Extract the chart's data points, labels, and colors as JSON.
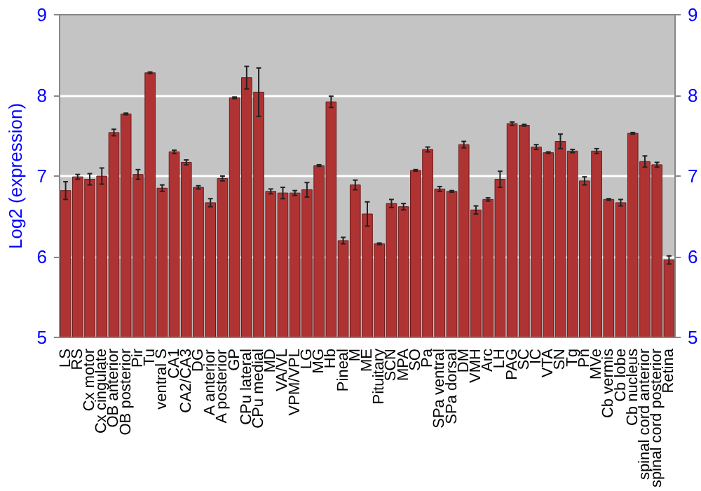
{
  "chart_data": {
    "type": "bar",
    "ylabel": "Log2 (expression)",
    "categories": [
      "LS",
      "RS",
      "Cx motor",
      "Cx cingulate",
      "OB anterior",
      "OB posterior",
      "Pir",
      "Tu",
      "ventral S",
      "CA1",
      "CA2/CA3",
      "DG",
      "A anterior",
      "A posterior",
      "GP",
      "CPu lateral",
      "CPu medial",
      "MD",
      "VA/VL",
      "VPM/VPL",
      "LG",
      "MG",
      "Hb",
      "Pineal",
      "M",
      "ME",
      "Pituitary",
      "SCN",
      "MPA",
      "SO",
      "Pa",
      "SPa ventral",
      "SPa dorsal",
      "DM",
      "VMH",
      "Arc",
      "LH",
      "PAG",
      "SC",
      "IC",
      "VTA",
      "SN",
      "Tg",
      "Pn",
      "MVe",
      "Cb vermis",
      "Cb lobe",
      "Cb nucleus",
      "spinal cord anterior",
      "spinal cord posterior",
      "Retina"
    ],
    "values": [
      6.82,
      6.99,
      6.96,
      7.0,
      7.54,
      7.77,
      7.02,
      8.28,
      6.85,
      7.3,
      7.17,
      6.86,
      6.67,
      6.97,
      7.97,
      8.22,
      8.04,
      6.81,
      6.79,
      6.79,
      6.83,
      7.13,
      7.92,
      6.2,
      6.89,
      6.53,
      6.16,
      6.66,
      6.62,
      7.07,
      7.33,
      6.84,
      6.81,
      7.39,
      6.58,
      6.71,
      6.96,
      7.65,
      7.63,
      7.36,
      7.29,
      7.43,
      7.31,
      6.94,
      7.31,
      6.71,
      6.67,
      7.53,
      7.18,
      7.14,
      5.96
    ],
    "errors": [
      0.11,
      0.03,
      0.07,
      0.1,
      0.04,
      0.01,
      0.06,
      0.01,
      0.04,
      0.02,
      0.03,
      0.02,
      0.05,
      0.03,
      0.01,
      0.14,
      0.3,
      0.03,
      0.07,
      0.03,
      0.09,
      0.01,
      0.07,
      0.04,
      0.06,
      0.15,
      0.01,
      0.05,
      0.04,
      0.01,
      0.03,
      0.03,
      0.01,
      0.04,
      0.05,
      0.02,
      0.1,
      0.02,
      0.01,
      0.03,
      0.01,
      0.09,
      0.02,
      0.05,
      0.03,
      0.01,
      0.04,
      0.01,
      0.07,
      0.03,
      0.05
    ],
    "color": "#b03333",
    "ylim": [
      5,
      9
    ],
    "yticks": [
      5,
      6,
      7,
      8,
      9
    ],
    "y2lim": [
      5,
      9
    ],
    "y2ticks": [
      5,
      6,
      7,
      8,
      9
    ],
    "grid": "y"
  }
}
